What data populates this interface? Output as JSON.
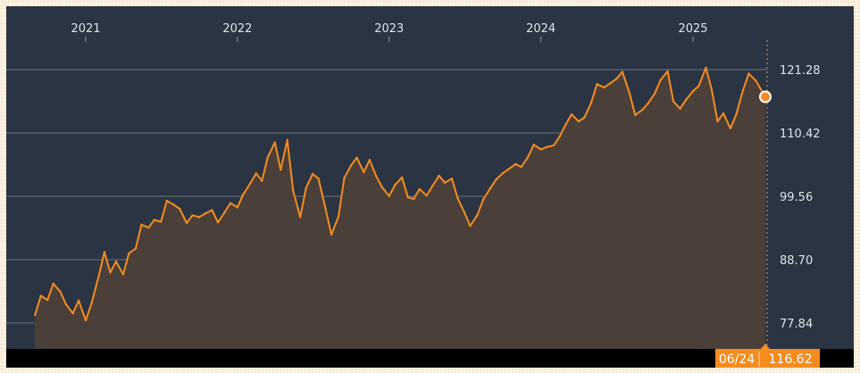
{
  "chart_data": {
    "type": "area",
    "x_axis": {
      "tick_labels": [
        "2021",
        "2022",
        "2023",
        "2024",
        "2025"
      ],
      "range": [
        "2020-09",
        "2025-07"
      ]
    },
    "y_axis": {
      "tick_labels": [
        "121.28",
        "110.42",
        "99.56",
        "88.70",
        "77.84"
      ],
      "ticks": [
        121.28,
        110.42,
        99.56,
        88.7,
        77.84
      ],
      "range": [
        75.5,
        130.0
      ],
      "position": "right"
    },
    "grid": {
      "horizontal": true,
      "vertical": false
    },
    "series": [
      {
        "color": "#f58c1f",
        "fill": "#4b4039",
        "points": [
          [
            "2020-09-01",
            79.2
          ],
          [
            "2020-09-15",
            82.5
          ],
          [
            "2020-10-01",
            81.8
          ],
          [
            "2020-10-15",
            84.6
          ],
          [
            "2020-11-01",
            83.2
          ],
          [
            "2020-11-15",
            81.0
          ],
          [
            "2020-12-01",
            79.5
          ],
          [
            "2020-12-15",
            81.7
          ],
          [
            "2021-01-01",
            78.3
          ],
          [
            "2021-01-15",
            81.2
          ],
          [
            "2021-02-01",
            85.8
          ],
          [
            "2021-02-15",
            90.0
          ],
          [
            "2021-03-01",
            86.5
          ],
          [
            "2021-03-15",
            88.4
          ],
          [
            "2021-04-01",
            86.2
          ],
          [
            "2021-04-15",
            89.8
          ],
          [
            "2021-05-01",
            90.6
          ],
          [
            "2021-05-15",
            94.7
          ],
          [
            "2021-06-01",
            94.2
          ],
          [
            "2021-06-15",
            95.5
          ],
          [
            "2021-07-01",
            95.2
          ],
          [
            "2021-07-15",
            98.8
          ],
          [
            "2021-08-01",
            98.1
          ],
          [
            "2021-08-15",
            97.4
          ],
          [
            "2021-09-01",
            95.0
          ],
          [
            "2021-09-15",
            96.3
          ],
          [
            "2021-10-01",
            96.0
          ],
          [
            "2021-10-15",
            96.6
          ],
          [
            "2021-11-01",
            97.2
          ],
          [
            "2021-11-15",
            95.1
          ],
          [
            "2021-12-01",
            96.8
          ],
          [
            "2021-12-15",
            98.4
          ],
          [
            "2022-01-01",
            97.7
          ],
          [
            "2022-01-15",
            99.9
          ],
          [
            "2022-02-01",
            101.8
          ],
          [
            "2022-02-15",
            103.5
          ],
          [
            "2022-03-01",
            102.2
          ],
          [
            "2022-03-15",
            106.3
          ],
          [
            "2022-04-01",
            108.8
          ],
          [
            "2022-04-15",
            104.1
          ],
          [
            "2022-05-01",
            109.2
          ],
          [
            "2022-05-15",
            100.5
          ],
          [
            "2022-06-01",
            96.0
          ],
          [
            "2022-06-15",
            101.0
          ],
          [
            "2022-07-01",
            103.4
          ],
          [
            "2022-07-15",
            102.6
          ],
          [
            "2022-08-01",
            97.4
          ],
          [
            "2022-08-15",
            93.0
          ],
          [
            "2022-09-01",
            96.1
          ],
          [
            "2022-09-15",
            102.7
          ],
          [
            "2022-10-01",
            104.8
          ],
          [
            "2022-10-15",
            106.2
          ],
          [
            "2022-11-01",
            103.7
          ],
          [
            "2022-11-15",
            105.8
          ],
          [
            "2022-12-01",
            103.0
          ],
          [
            "2022-12-15",
            101.1
          ],
          [
            "2023-01-01",
            99.6
          ],
          [
            "2023-01-15",
            101.5
          ],
          [
            "2023-02-01",
            102.8
          ],
          [
            "2023-02-15",
            99.4
          ],
          [
            "2023-03-01",
            99.1
          ],
          [
            "2023-03-15",
            100.8
          ],
          [
            "2023-04-01",
            99.7
          ],
          [
            "2023-04-15",
            101.3
          ],
          [
            "2023-05-01",
            103.1
          ],
          [
            "2023-05-15",
            101.9
          ],
          [
            "2023-06-01",
            102.6
          ],
          [
            "2023-06-15",
            99.2
          ],
          [
            "2023-07-01",
            96.8
          ],
          [
            "2023-07-15",
            94.5
          ],
          [
            "2023-08-01",
            96.3
          ],
          [
            "2023-08-15",
            99.0
          ],
          [
            "2023-09-01",
            100.9
          ],
          [
            "2023-09-15",
            102.4
          ],
          [
            "2023-10-01",
            103.5
          ],
          [
            "2023-10-15",
            104.2
          ],
          [
            "2023-11-01",
            105.1
          ],
          [
            "2023-11-15",
            104.6
          ],
          [
            "2023-12-01",
            106.3
          ],
          [
            "2023-12-15",
            108.4
          ],
          [
            "2024-01-01",
            107.6
          ],
          [
            "2024-01-15",
            108.0
          ],
          [
            "2024-02-01",
            108.3
          ],
          [
            "2024-02-15",
            109.8
          ],
          [
            "2024-03-01",
            111.9
          ],
          [
            "2024-03-15",
            113.6
          ],
          [
            "2024-04-01",
            112.4
          ],
          [
            "2024-04-15",
            113.1
          ],
          [
            "2024-05-01",
            115.6
          ],
          [
            "2024-05-15",
            118.8
          ],
          [
            "2024-06-01",
            118.2
          ],
          [
            "2024-06-15",
            118.9
          ],
          [
            "2024-07-01",
            119.7
          ],
          [
            "2024-07-15",
            120.9
          ],
          [
            "2024-08-01",
            117.3
          ],
          [
            "2024-08-15",
            113.5
          ],
          [
            "2024-09-01",
            114.4
          ],
          [
            "2024-09-15",
            115.5
          ],
          [
            "2024-10-01",
            117.2
          ],
          [
            "2024-10-15",
            119.5
          ],
          [
            "2024-11-01",
            121.0
          ],
          [
            "2024-11-15",
            115.8
          ],
          [
            "2024-12-01",
            114.6
          ],
          [
            "2024-12-15",
            116.1
          ],
          [
            "2025-01-01",
            117.6
          ],
          [
            "2025-01-15",
            118.5
          ],
          [
            "2025-02-01",
            121.6
          ],
          [
            "2025-02-15",
            117.9
          ],
          [
            "2025-03-01",
            112.4
          ],
          [
            "2025-03-15",
            113.8
          ],
          [
            "2025-04-01",
            111.2
          ],
          [
            "2025-04-15",
            113.6
          ],
          [
            "2025-05-01",
            117.7
          ],
          [
            "2025-05-15",
            120.6
          ],
          [
            "2025-06-01",
            119.4
          ],
          [
            "2025-06-24",
            116.62
          ]
        ]
      }
    ],
    "last_point": {
      "date_label": "06/24",
      "value_label": "116.62"
    }
  }
}
